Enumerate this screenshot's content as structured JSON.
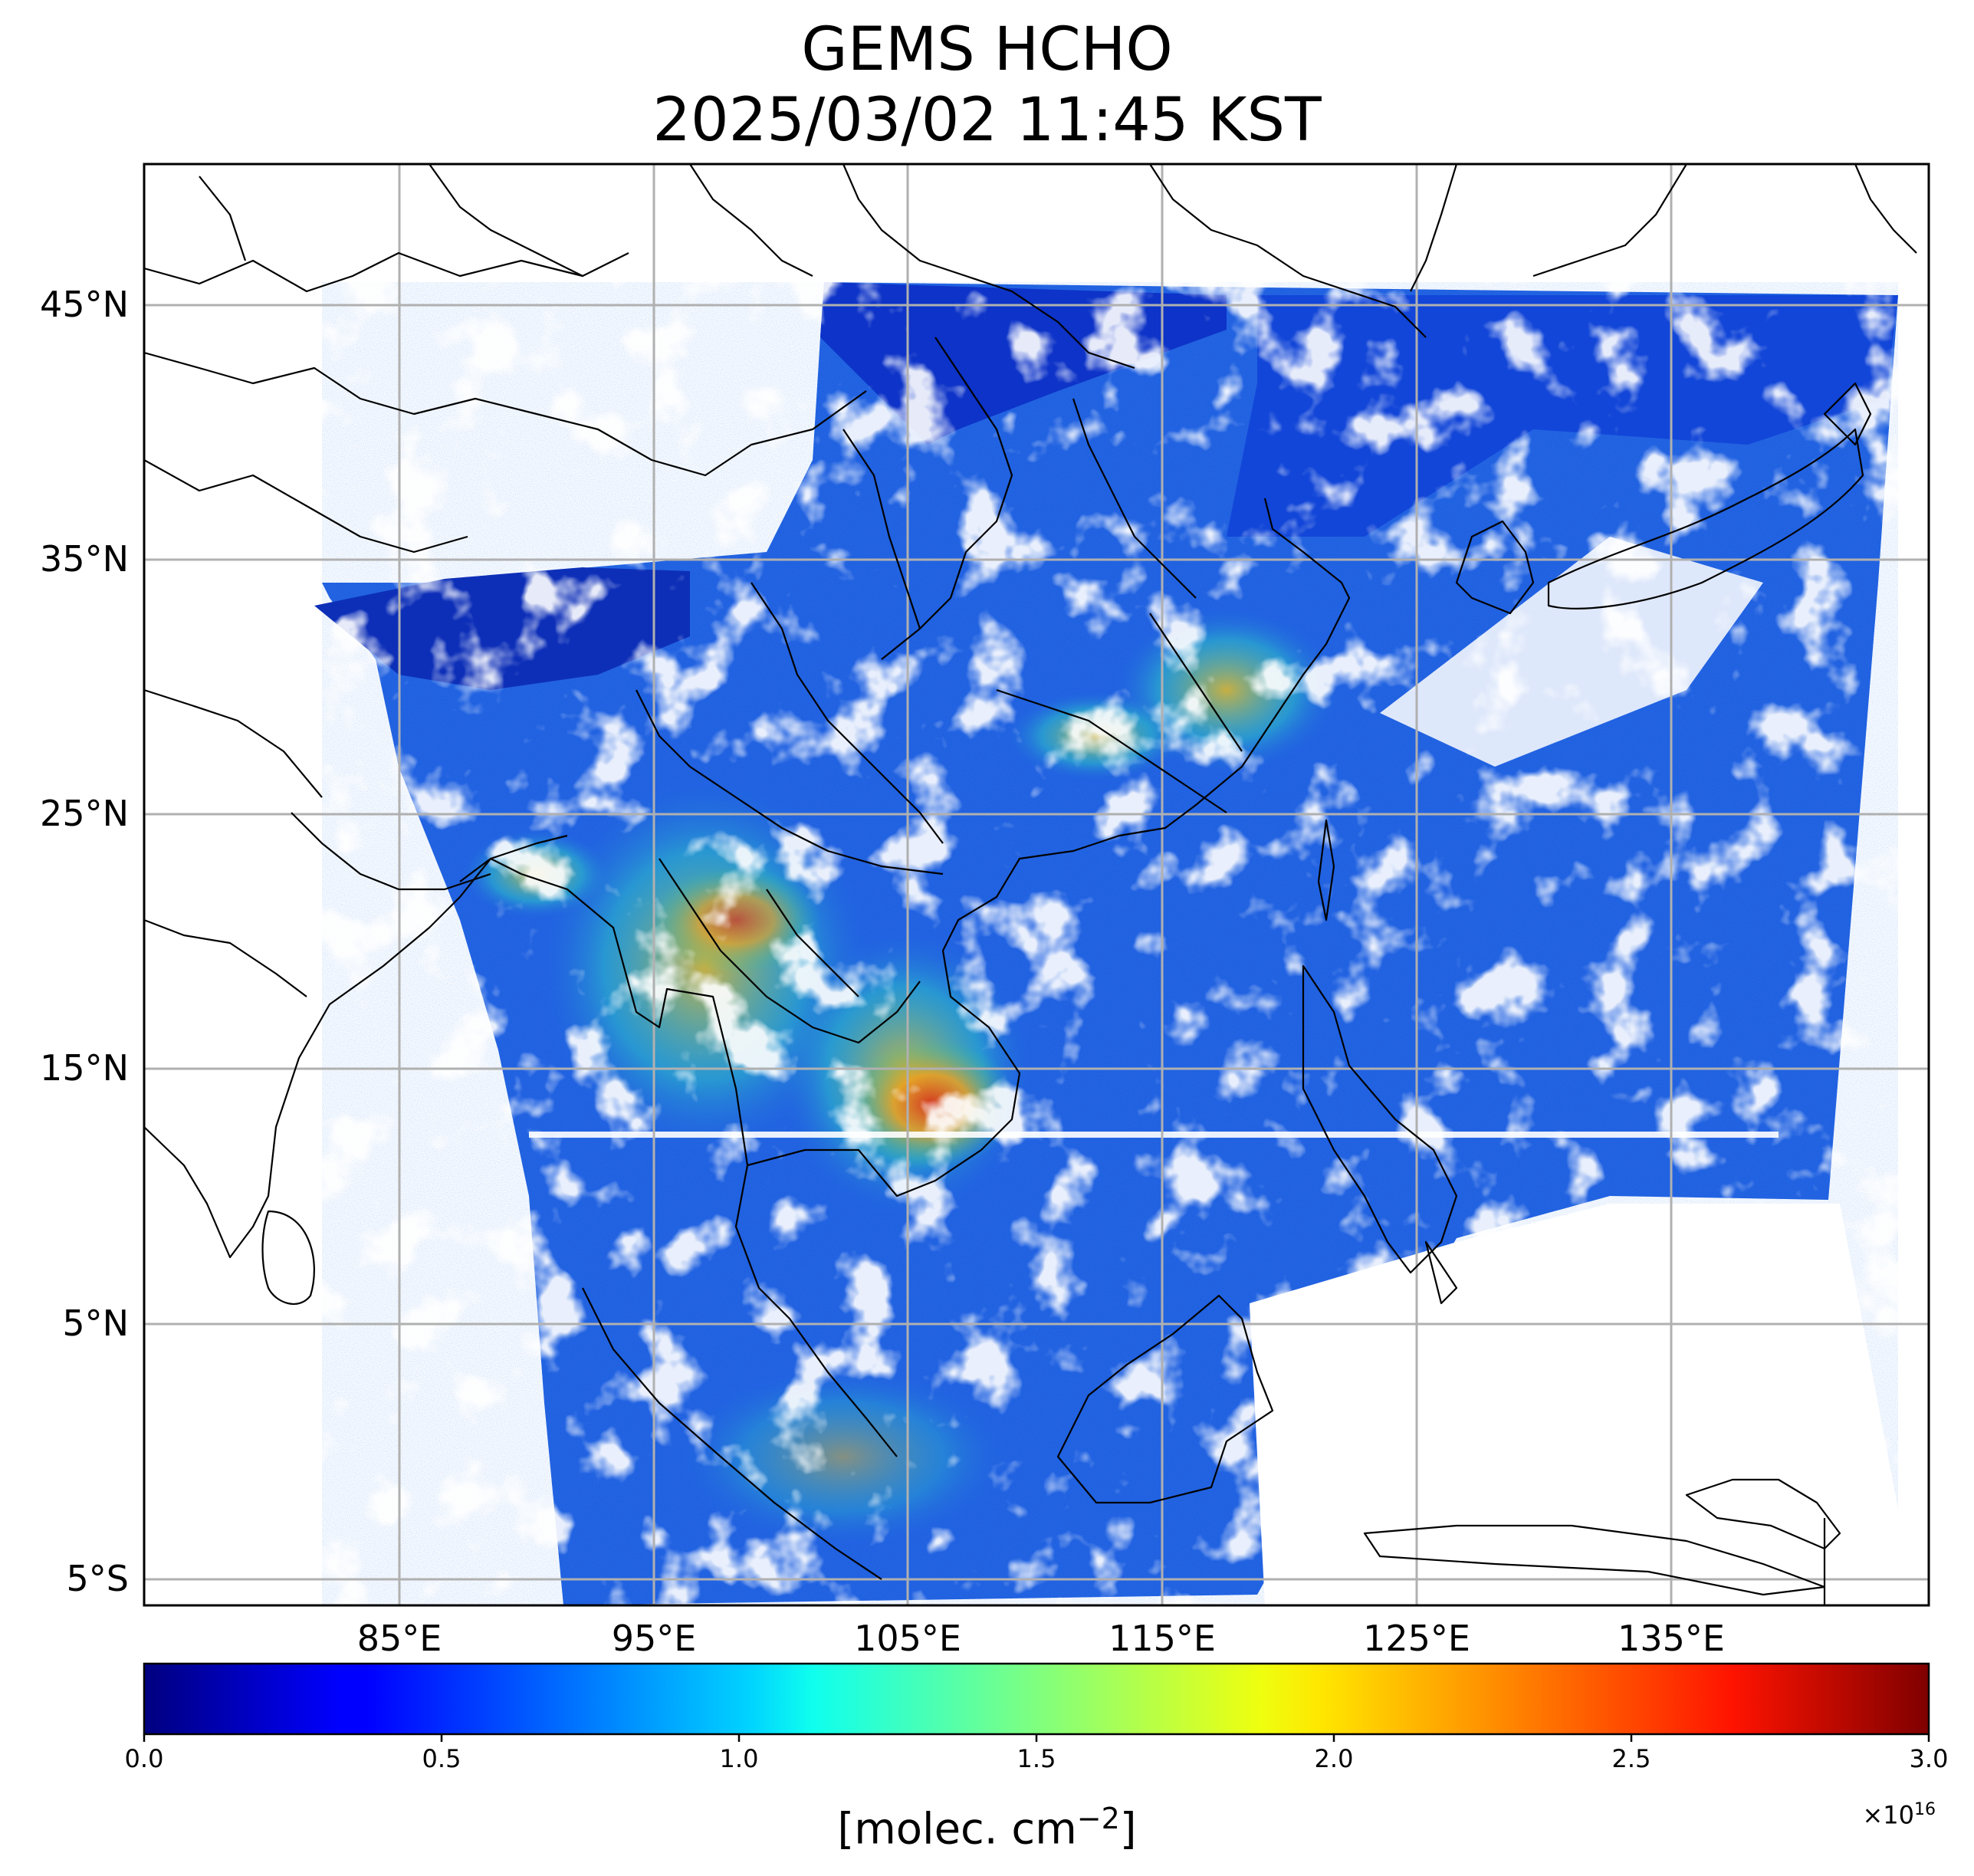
{
  "title": {
    "line1": "GEMS HCHO",
    "line2": "2025/03/02 11:45 KST"
  },
  "map": {
    "lat_labels": [
      "45°N",
      "35°N",
      "25°N",
      "15°N",
      "5°N",
      "5°S"
    ],
    "lat_values": [
      45,
      35,
      25,
      15,
      5,
      -5
    ],
    "lon_labels": [
      "85°E",
      "95°E",
      "105°E",
      "115°E",
      "125°E",
      "135°E"
    ],
    "lon_values": [
      85,
      95,
      105,
      115,
      125,
      135
    ],
    "extent": {
      "lon_min": 75,
      "lon_max": 145.2,
      "lat_min": -6,
      "lat_max": 50.5
    },
    "grid": true,
    "field_colors": {
      "low": "#0a2bd6",
      "background": "#1f5fe0",
      "mid": "#21c4e8",
      "high": "#f2a01a",
      "peak": "#d8321a",
      "cloud_mask": "#ffffff",
      "border": "#000000"
    }
  },
  "colorbar": {
    "colormap": "jet",
    "ticks": [
      "0.0",
      "0.5",
      "1.0",
      "1.5",
      "2.0",
      "2.5",
      "3.0"
    ],
    "tick_values": [
      0.0,
      0.5,
      1.0,
      1.5,
      2.0,
      2.5,
      3.0
    ],
    "multiplier": "×10",
    "exponent": "16",
    "units_prefix": "[molec. cm",
    "units_power": "−2",
    "units_suffix": "]"
  }
}
